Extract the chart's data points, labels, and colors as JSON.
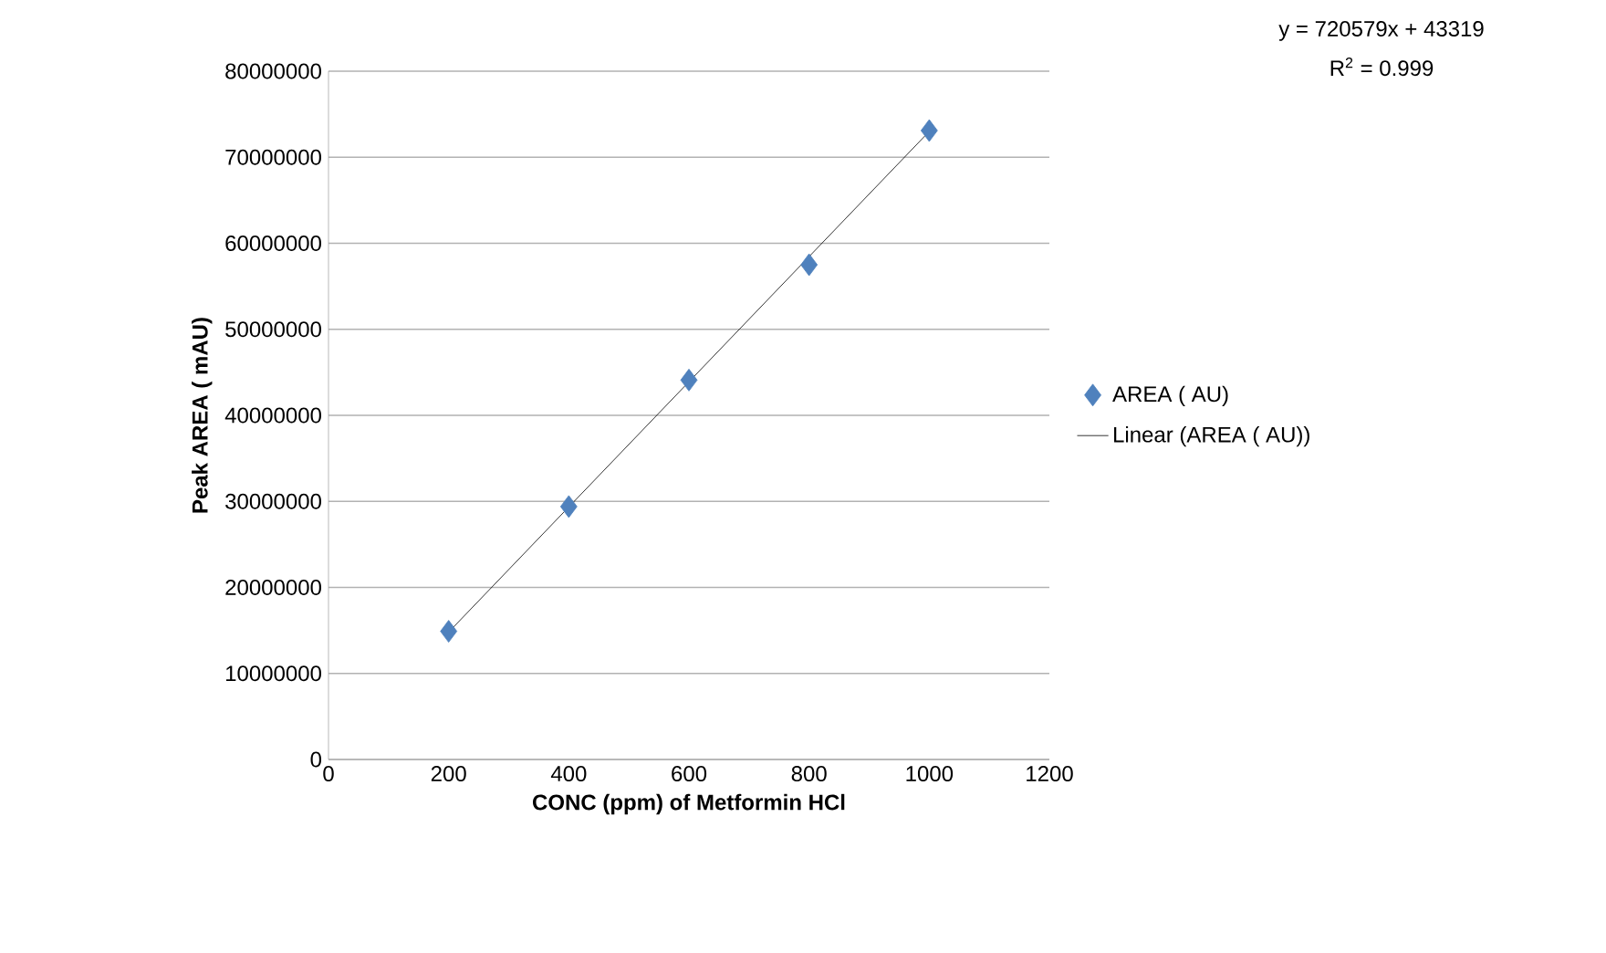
{
  "chart_data": {
    "type": "scatter",
    "xlabel": "CONC (ppm) of Metformin HCl",
    "ylabel": "Peak AREA ( mAU)",
    "annotations": [
      "y = 720579x + 43319",
      "R$^{2}$ = 0.999"
    ],
    "series": [
      {
        "name": "AREA  ( AU)",
        "color": "#4f81bd",
        "marker": "diamond",
        "x": [
          200,
          400,
          600,
          800,
          1000
        ],
        "values": [
          14900000,
          29400000,
          44100000,
          57500000,
          73100000
        ]
      },
      {
        "name": "Linear (AREA  ( AU))",
        "type": "line",
        "color": "#000000",
        "marker": "none",
        "x": [
          200,
          1000
        ],
        "values": [
          14800000,
          73000000
        ]
      }
    ],
    "xlim": [
      0,
      1200
    ],
    "xticks": [
      0,
      200,
      400,
      600,
      800,
      1000,
      1200
    ],
    "ylim": [
      0,
      80000000
    ],
    "yticks": [
      0,
      10000000,
      20000000,
      30000000,
      40000000,
      50000000,
      60000000,
      70000000,
      80000000
    ],
    "grid": "y",
    "legend": "right"
  }
}
